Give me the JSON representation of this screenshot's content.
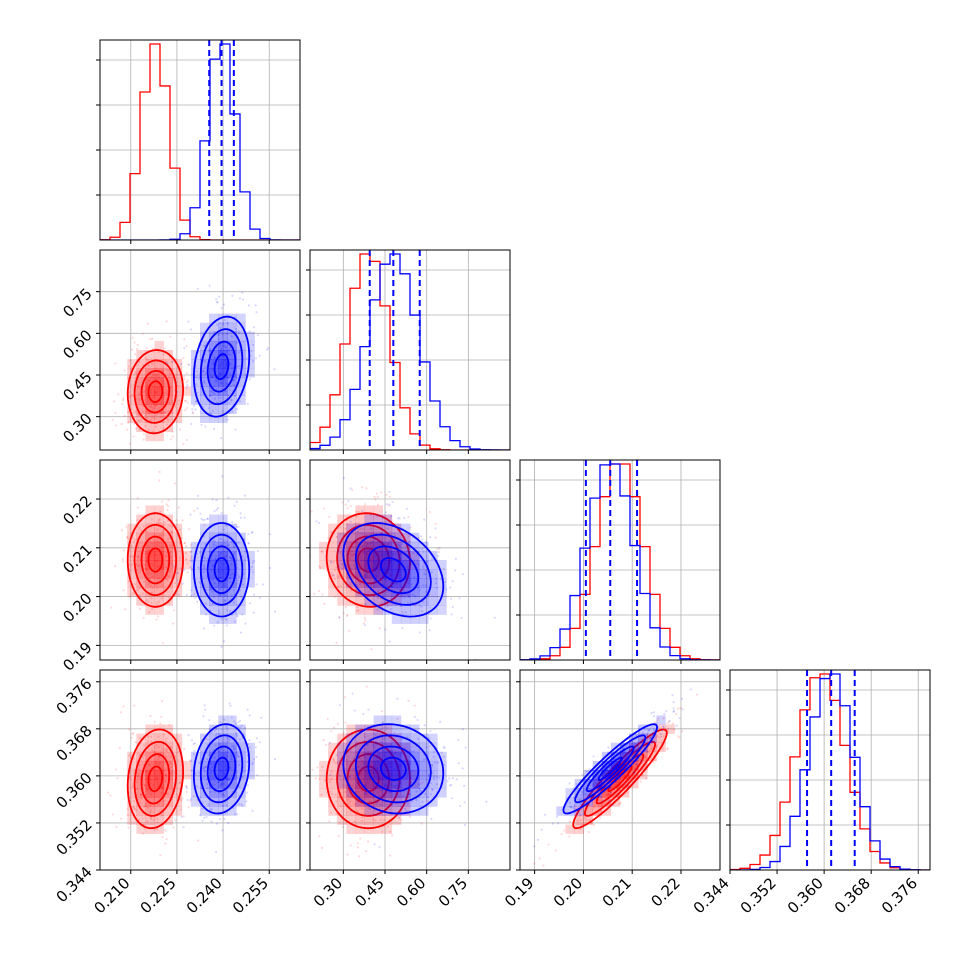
{
  "colors": {
    "series_a": "#ff0000",
    "series_b": "#0000ff",
    "grid": "#b0b0b0"
  },
  "chart_data": {
    "type": "corner",
    "grid": true,
    "n_params": 4,
    "param_ranges": [
      [
        0.2,
        0.265
      ],
      [
        0.18,
        0.9
      ],
      [
        0.187,
        0.228
      ],
      [
        0.344,
        0.378
      ]
    ],
    "ticks": [
      {
        "values": [
          0.21,
          0.225,
          0.24,
          0.255
        ],
        "labels": [
          "0.210",
          "0.225",
          "0.240",
          "0.255"
        ]
      },
      {
        "values": [
          0.3,
          0.45,
          0.6,
          0.75
        ],
        "labels": [
          "0.30",
          "0.45",
          "0.60",
          "0.75"
        ]
      },
      {
        "values": [
          0.19,
          0.2,
          0.21,
          0.22
        ],
        "labels": [
          "0.19",
          "0.20",
          "0.21",
          "0.22"
        ]
      },
      {
        "values": [
          0.344,
          0.352,
          0.36,
          0.368,
          0.376
        ],
        "labels": [
          "0.344",
          "0.352",
          "0.360",
          "0.368",
          "0.376"
        ]
      }
    ],
    "series": [
      {
        "color": "#ff0000",
        "means": [
          0.218,
          0.39,
          0.2075,
          0.3595
        ],
        "sigmas": [
          0.0045,
          0.075,
          0.0048,
          0.0042
        ],
        "correlations": {
          "1,0": 0.05,
          "2,0": 0.0,
          "2,1": -0.05,
          "3,0": 0.15,
          "3,1": 0.0,
          "3,2": 0.93
        }
      },
      {
        "color": "#0000ff",
        "means": [
          0.2395,
          0.48,
          0.2055,
          0.3612
        ],
        "sigmas": [
          0.0045,
          0.09,
          0.0048,
          0.0038
        ],
        "correlations": {
          "1,0": 0.2,
          "2,0": 0.0,
          "2,1": -0.35,
          "3,0": 0.15,
          "3,1": -0.1,
          "3,2": 0.93
        }
      }
    ],
    "quantile_lines": [
      [
        0.2355,
        0.2395,
        0.2435
      ],
      [
        0.395,
        0.48,
        0.575
      ],
      [
        0.2005,
        0.2055,
        0.211
      ],
      [
        0.3571,
        0.3612,
        0.3652
      ]
    ]
  }
}
